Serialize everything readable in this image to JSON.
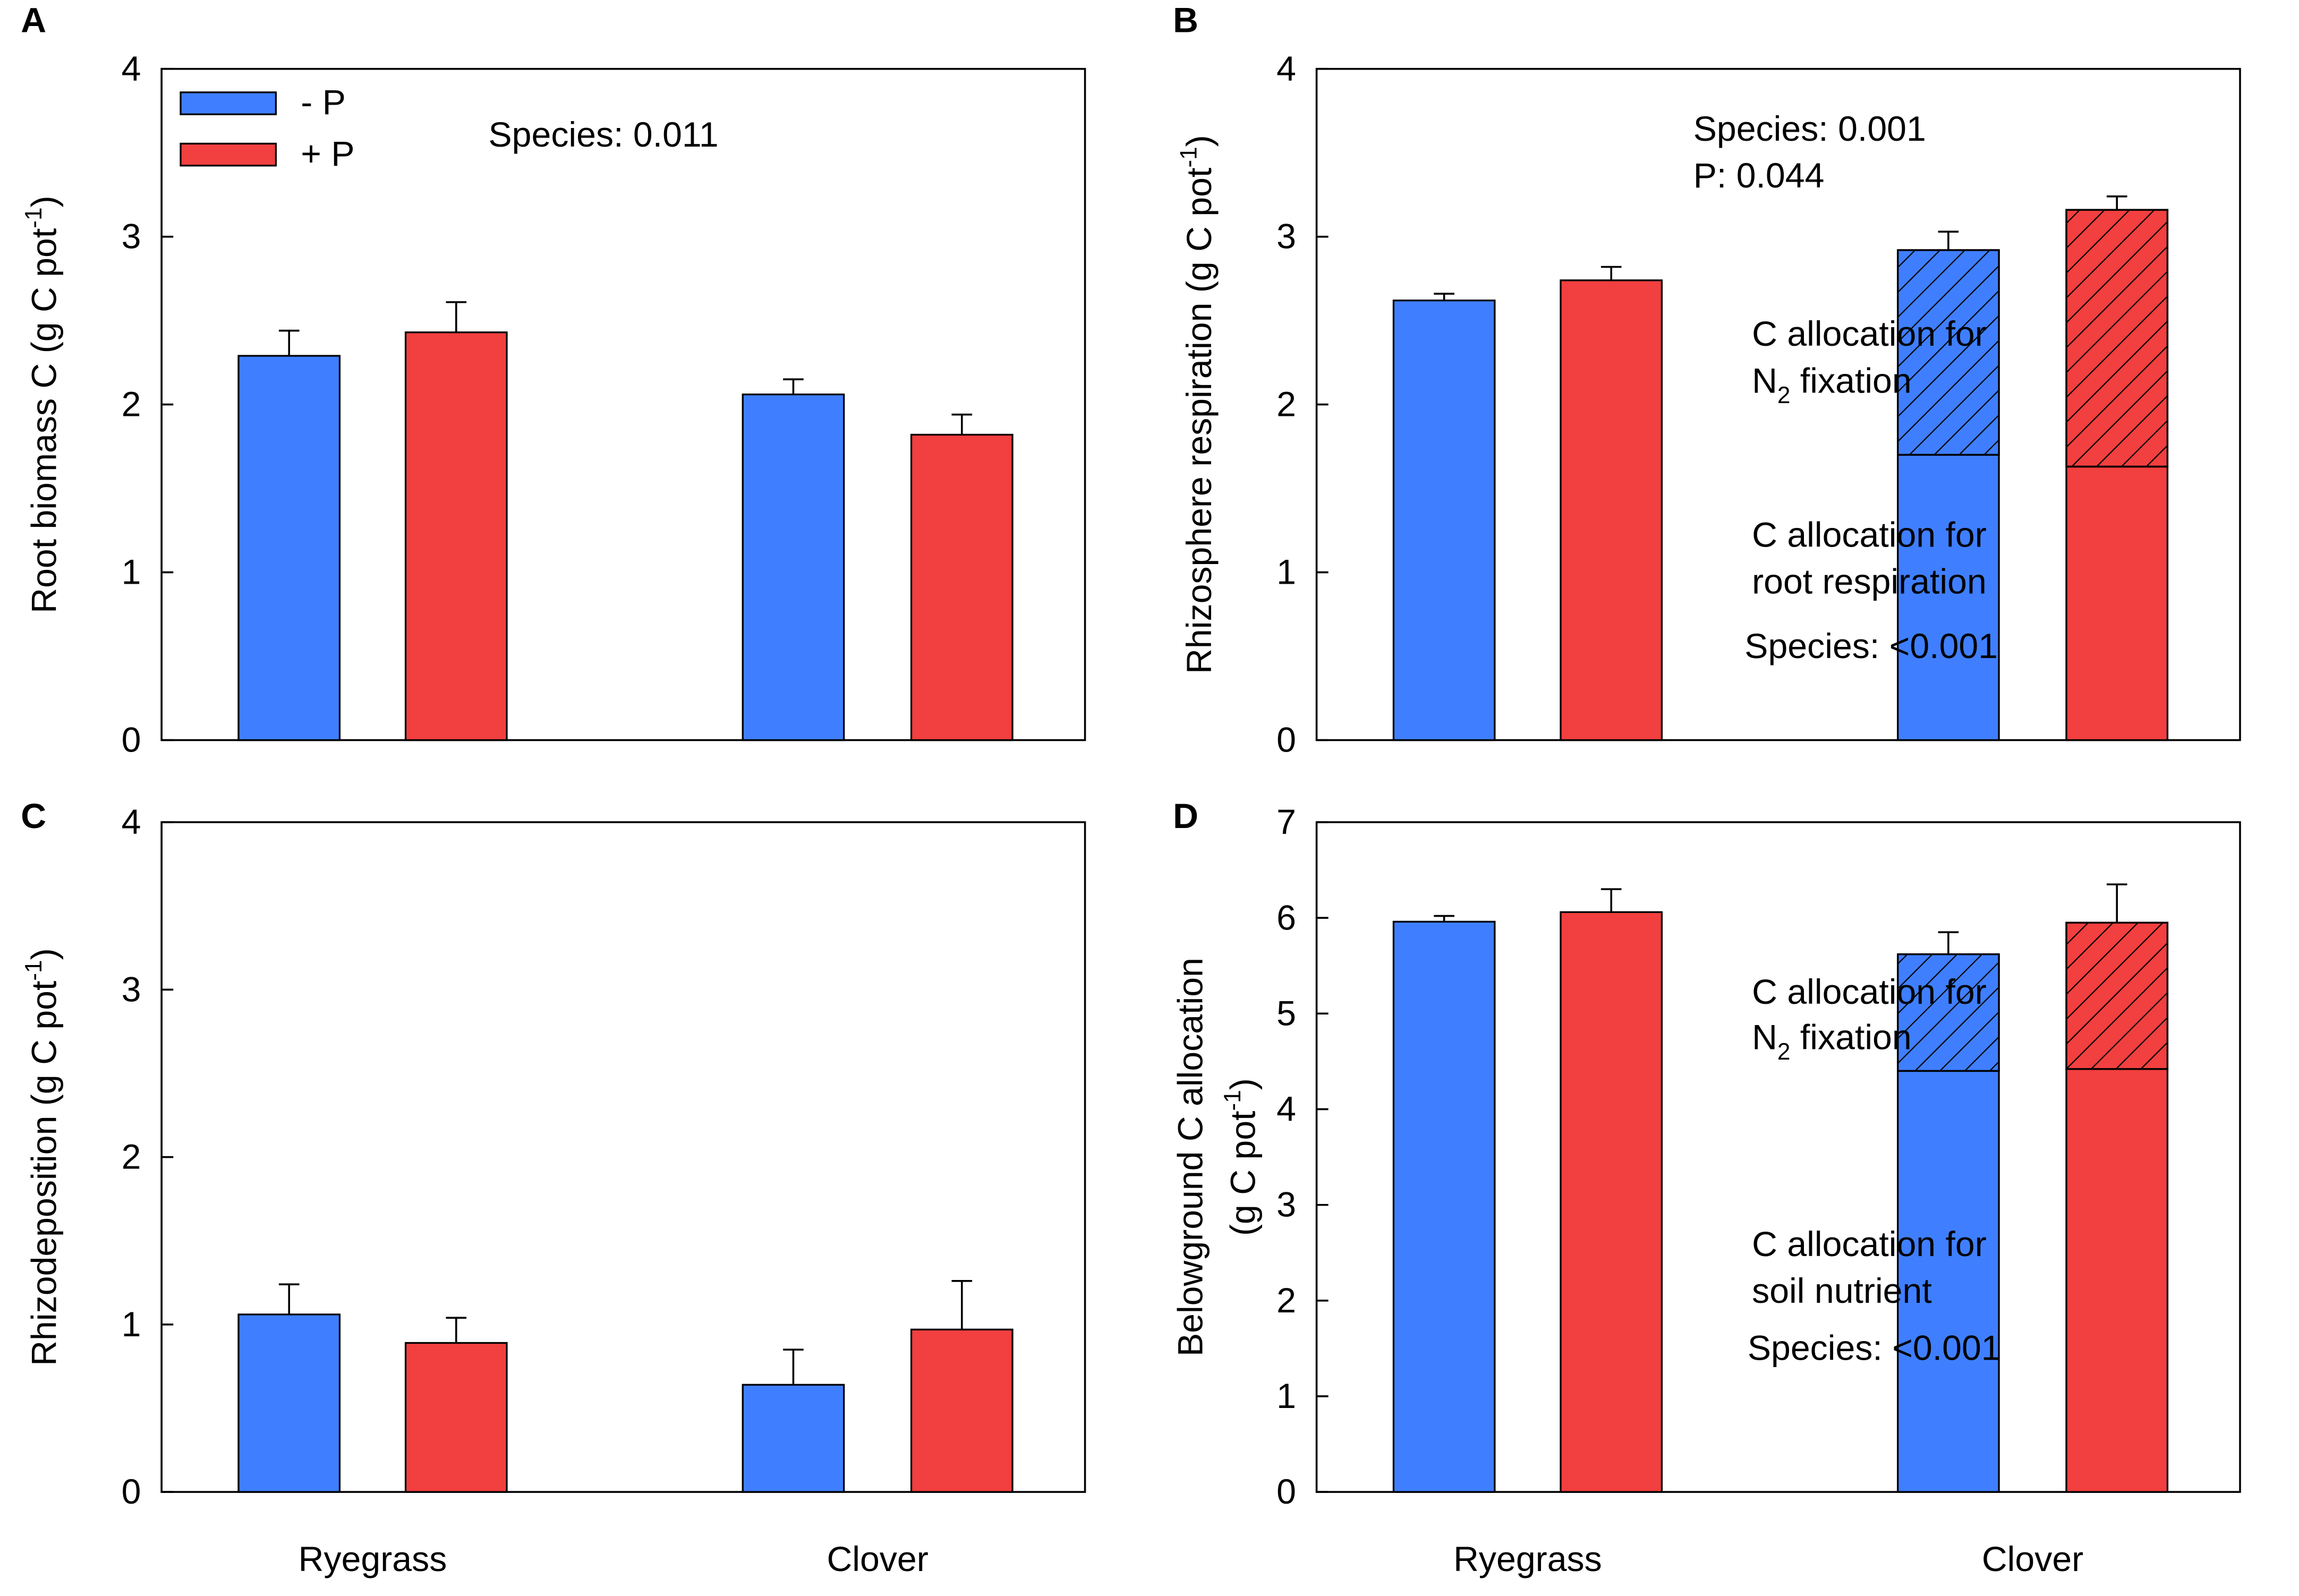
{
  "chart_data": [
    {
      "type": "bar",
      "panel": "A",
      "ylabel": [
        [
          "Root biomass C (g C pot",
          "-1",
          ")"
        ]
      ],
      "ylim": [
        0,
        4
      ],
      "yticks": [
        0,
        1,
        2,
        3,
        4
      ],
      "annotations": [
        [
          "Species: 0.011"
        ]
      ],
      "legend": "upper left",
      "series": [
        {
          "name": "- P",
          "color": "#3f7fff",
          "values": [
            2.29,
            2.06
          ],
          "errors": [
            0.15,
            0.09
          ]
        },
        {
          "name": "+ P",
          "color": "#f23f3f",
          "values": [
            2.43,
            1.82
          ],
          "errors": [
            0.18,
            0.12
          ]
        }
      ]
    },
    {
      "type": "bar",
      "panel": "B",
      "ylabel": [
        [
          "Rhizosphere respiration (g C pot",
          "-1",
          ")"
        ]
      ],
      "ylim": [
        0,
        4
      ],
      "yticks": [
        0,
        1,
        2,
        3,
        4
      ],
      "annotations": [
        [
          "Species: 0.001"
        ],
        [
          "P: 0.044"
        ],
        [
          "C allocation for"
        ],
        [
          "N",
          "2",
          " fixation"
        ],
        [
          "C allocation for"
        ],
        [
          "root respiration"
        ],
        [
          "Species: <0.001"
        ]
      ],
      "series": [
        {
          "color": "#3f7fff",
          "values": [
            2.62,
            1.7
          ],
          "errors": [
            0.04,
            0.12
          ]
        },
        {
          "color": "#f23f3f",
          "values": [
            2.74,
            1.63
          ],
          "errors": [
            0.08,
            0.1
          ]
        }
      ],
      "segments": [
        {
          "color": "#3f7fff",
          "hatch": true,
          "values": [
            null,
            1.22
          ],
          "errors": [
            null,
            0.11
          ]
        },
        {
          "color": "#f23f3f",
          "hatch": true,
          "values": [
            null,
            1.53
          ],
          "errors": [
            null,
            0.08
          ]
        }
      ]
    },
    {
      "type": "bar",
      "panel": "C",
      "ylabel": [
        [
          "Rhizodeposition (g C pot",
          "-1",
          ")"
        ]
      ],
      "ylim": [
        0,
        4
      ],
      "yticks": [
        0,
        1,
        2,
        3,
        4
      ],
      "categories": [
        "Ryegrass",
        "Clover"
      ],
      "series": [
        {
          "color": "#3f7fff",
          "values": [
            1.06,
            0.64
          ],
          "errors": [
            0.18,
            0.21
          ]
        },
        {
          "color": "#f23f3f",
          "values": [
            0.89,
            0.97
          ],
          "errors": [
            0.15,
            0.29
          ]
        }
      ]
    },
    {
      "type": "bar",
      "panel": "D",
      "ylabel": [
        [
          "Belowground C allocation"
        ],
        [
          "(g C pot",
          "-1",
          ")"
        ]
      ],
      "ylim": [
        0,
        7
      ],
      "yticks": [
        0,
        1,
        2,
        3,
        4,
        5,
        6,
        7
      ],
      "categories": [
        "Ryegrass",
        "Clover"
      ],
      "annotations": [
        [
          "C allocation for"
        ],
        [
          "N",
          "2",
          " fixation"
        ],
        [
          "C allocation for"
        ],
        [
          "soil nutrient"
        ],
        [
          "Species: <0.001"
        ]
      ],
      "series": [
        {
          "color": "#3f7fff",
          "values": [
            5.96,
            4.4
          ],
          "errors": [
            0.06,
            0.2
          ]
        },
        {
          "color": "#f23f3f",
          "values": [
            6.06,
            4.42
          ],
          "errors": [
            0.24,
            0.3
          ]
        }
      ],
      "segments": [
        {
          "color": "#3f7fff",
          "hatch": true,
          "values": [
            null,
            1.22
          ],
          "errors": [
            null,
            0.23
          ]
        },
        {
          "color": "#f23f3f",
          "hatch": true,
          "values": [
            null,
            1.53
          ],
          "errors": [
            null,
            0.4
          ]
        }
      ]
    }
  ]
}
